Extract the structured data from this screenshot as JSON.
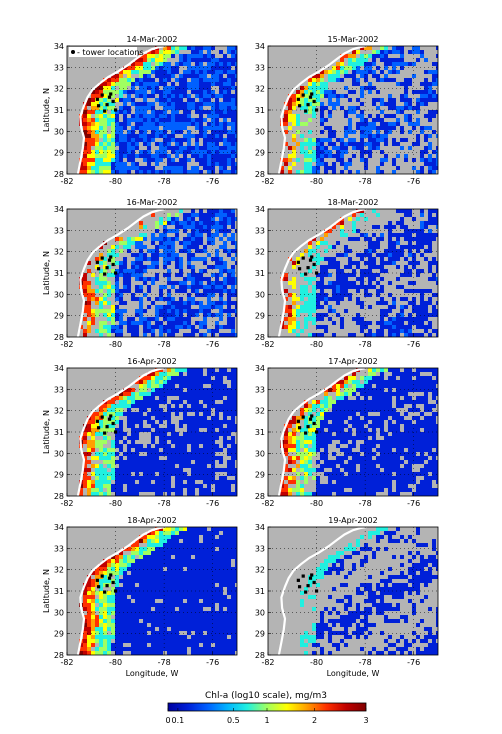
{
  "figure": {
    "panels": [
      {
        "title": "14-Mar-2002",
        "bloom": 1.0,
        "shelf": 1.0,
        "offshore": 0.55,
        "cloud": 0.18,
        "legend": true,
        "show_ylabel": true,
        "show_xlabel": false
      },
      {
        "title": "15-Mar-2002",
        "bloom": 0.8,
        "shelf": 0.6,
        "offshore": 0.45,
        "cloud": 0.55,
        "legend": false,
        "show_ylabel": false,
        "show_xlabel": false
      },
      {
        "title": "16-Mar-2002",
        "bloom": 0.9,
        "shelf": 0.9,
        "offshore": 0.5,
        "cloud": 0.45,
        "legend": false,
        "show_ylabel": true,
        "show_xlabel": false
      },
      {
        "title": "18-Mar-2002",
        "bloom": 0.6,
        "shelf": 0.3,
        "offshore": 0.3,
        "cloud": 0.6,
        "legend": false,
        "show_ylabel": false,
        "show_xlabel": false
      },
      {
        "title": "16-Apr-2002",
        "bloom": 0.85,
        "shelf": 0.8,
        "offshore": 0.15,
        "cloud": 0.25,
        "legend": false,
        "show_ylabel": true,
        "show_xlabel": false
      },
      {
        "title": "17-Apr-2002",
        "bloom": 0.9,
        "shelf": 0.9,
        "offshore": 0.12,
        "cloud": 0.3,
        "legend": false,
        "show_ylabel": false,
        "show_xlabel": false
      },
      {
        "title": "18-Apr-2002",
        "bloom": 0.85,
        "shelf": 0.9,
        "offshore": 0.18,
        "cloud": 0.08,
        "legend": false,
        "show_ylabel": true,
        "show_xlabel": true
      },
      {
        "title": "19-Apr-2002",
        "bloom": 0.0,
        "shelf": 0.2,
        "offshore": 0.12,
        "cloud": 0.75,
        "legend": false,
        "show_ylabel": false,
        "show_xlabel": true
      }
    ],
    "legend_label": "- tower locations",
    "ylabel": "Latitude, N",
    "xlabel": "Longitude, W",
    "x_ticks": [
      "-82",
      "-80",
      "-78",
      "-76"
    ],
    "y_ticks": [
      "34",
      "33",
      "32",
      "31",
      "30",
      "29",
      "28"
    ],
    "colorbar": {
      "title": "Chl-a (log10 scale), mg/m3",
      "ticks": [
        "0",
        "0.1",
        "0.5",
        "1",
        "2",
        "3"
      ],
      "colors": [
        "#0000a0",
        "#0020d8",
        "#0060ff",
        "#00b4ff",
        "#20f0e0",
        "#a0ff60",
        "#ffff00",
        "#ffa000",
        "#ff3000",
        "#c00000",
        "#800000"
      ]
    },
    "colors": {
      "land": "#b4b4b4",
      "coast": "#ffffff",
      "tower": "#000000"
    }
  }
}
